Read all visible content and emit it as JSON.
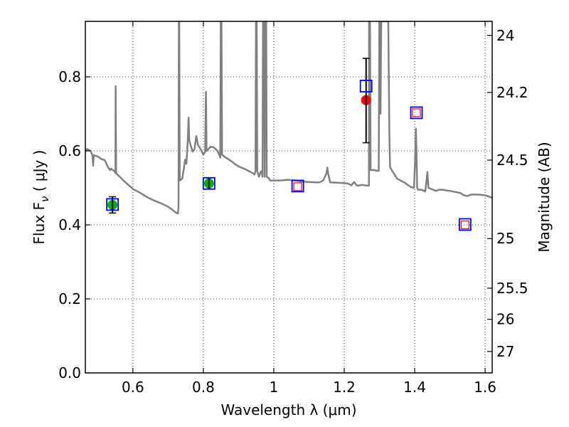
{
  "chart_data": {
    "type": "scatter",
    "xlabel": "Wavelength  λ (μm)",
    "ylabel": "Flux  F",
    "ylabel_sub": "ν",
    "ylabel_unit": "  ( μJy )",
    "y2label": "Magnitude (AB)",
    "xlim": [
      0.465,
      1.62
    ],
    "ylim": [
      0.0,
      0.95
    ],
    "grid": true,
    "xticks": [
      0.6,
      0.8,
      1.0,
      1.2,
      1.4,
      1.6
    ],
    "xtick_labels": [
      "0.6",
      "0.8",
      "1",
      "1.2",
      "1.4",
      "1.6"
    ],
    "yticks": [
      0.0,
      0.2,
      0.4,
      0.6,
      0.8
    ],
    "ytick_labels": [
      "0.0",
      "0.2",
      "0.4",
      "0.6",
      "0.8"
    ],
    "mag_ticks": [
      {
        "label": "24",
        "flux": 0.912
      },
      {
        "label": "24.2",
        "flux": 0.758
      },
      {
        "label": "24.5",
        "flux": 0.575
      },
      {
        "label": "25",
        "flux": 0.363
      },
      {
        "label": "25.5",
        "flux": 0.229
      },
      {
        "label": "26",
        "flux": 0.145
      },
      {
        "label": "27",
        "flux": 0.058
      }
    ],
    "sed_model": {
      "color": "#808080",
      "points": [
        [
          0.465,
          0.6
        ],
        [
          0.47,
          0.605
        ],
        [
          0.48,
          0.6
        ],
        [
          0.485,
          0.588
        ],
        [
          0.487,
          0.56
        ],
        [
          0.489,
          0.588
        ],
        [
          0.5,
          0.585
        ],
        [
          0.51,
          0.578
        ],
        [
          0.52,
          0.575
        ],
        [
          0.525,
          0.565
        ],
        [
          0.53,
          0.555
        ],
        [
          0.535,
          0.548
        ],
        [
          0.538,
          0.552
        ],
        [
          0.54,
          0.55
        ],
        [
          0.543,
          0.548
        ],
        [
          0.545,
          0.547
        ],
        [
          0.548,
          0.545
        ],
        [
          0.5505,
          0.54
        ],
        [
          0.551,
          0.775
        ],
        [
          0.5525,
          0.54
        ],
        [
          0.556,
          0.536
        ],
        [
          0.565,
          0.528
        ],
        [
          0.575,
          0.518
        ],
        [
          0.585,
          0.51
        ],
        [
          0.6,
          0.497
        ],
        [
          0.62,
          0.487
        ],
        [
          0.64,
          0.475
        ],
        [
          0.66,
          0.466
        ],
        [
          0.68,
          0.458
        ],
        [
          0.7,
          0.449
        ],
        [
          0.712,
          0.441
        ],
        [
          0.722,
          0.433
        ],
        [
          0.728,
          0.431
        ],
        [
          0.7295,
          0.45
        ],
        [
          0.7305,
          0.95
        ],
        [
          0.7315,
          0.95
        ],
        [
          0.733,
          0.52
        ],
        [
          0.74,
          0.525
        ],
        [
          0.745,
          0.555
        ],
        [
          0.748,
          0.576
        ],
        [
          0.752,
          0.565
        ],
        [
          0.756,
          0.632
        ],
        [
          0.758,
          0.69
        ],
        [
          0.76,
          0.628
        ],
        [
          0.765,
          0.612
        ],
        [
          0.77,
          0.598
        ],
        [
          0.775,
          0.605
        ],
        [
          0.78,
          0.64
        ],
        [
          0.785,
          0.615
        ],
        [
          0.79,
          0.608
        ],
        [
          0.795,
          0.6
        ],
        [
          0.8,
          0.59
        ],
        [
          0.805,
          0.598
        ],
        [
          0.8075,
          0.76
        ],
        [
          0.809,
          0.6
        ],
        [
          0.815,
          0.605
        ],
        [
          0.82,
          0.611
        ],
        [
          0.828,
          0.61
        ],
        [
          0.835,
          0.605
        ],
        [
          0.84,
          0.6
        ],
        [
          0.845,
          0.59
        ],
        [
          0.848,
          0.582
        ],
        [
          0.8495,
          0.95
        ],
        [
          0.8515,
          0.95
        ],
        [
          0.853,
          0.59
        ],
        [
          0.86,
          0.584
        ],
        [
          0.87,
          0.578
        ],
        [
          0.88,
          0.572
        ],
        [
          0.89,
          0.564
        ],
        [
          0.9,
          0.558
        ],
        [
          0.91,
          0.554
        ],
        [
          0.92,
          0.55
        ],
        [
          0.93,
          0.545
        ],
        [
          0.94,
          0.54
        ],
        [
          0.945,
          0.536
        ],
        [
          0.948,
          0.545
        ],
        [
          0.9495,
          0.95
        ],
        [
          0.9515,
          0.95
        ],
        [
          0.953,
          0.545
        ],
        [
          0.958,
          0.53
        ],
        [
          0.962,
          0.542
        ],
        [
          0.965,
          0.545
        ],
        [
          0.968,
          0.53
        ],
        [
          0.9695,
          0.95
        ],
        [
          0.9725,
          0.95
        ],
        [
          0.974,
          0.53
        ],
        [
          0.9755,
          0.95
        ],
        [
          0.9785,
          0.95
        ],
        [
          0.98,
          0.53
        ],
        [
          0.985,
          0.527
        ],
        [
          0.99,
          0.52
        ],
        [
          1.0,
          0.52
        ],
        [
          1.02,
          0.52
        ],
        [
          1.04,
          0.522
        ],
        [
          1.06,
          0.52
        ],
        [
          1.08,
          0.517
        ],
        [
          1.1,
          0.516
        ],
        [
          1.12,
          0.515
        ],
        [
          1.13,
          0.515
        ],
        [
          1.14,
          0.52
        ],
        [
          1.15,
          0.54
        ],
        [
          1.152,
          0.555
        ],
        [
          1.155,
          0.535
        ],
        [
          1.16,
          0.515
        ],
        [
          1.18,
          0.514
        ],
        [
          1.2,
          0.513
        ],
        [
          1.21,
          0.512
        ],
        [
          1.22,
          0.507
        ],
        [
          1.228,
          0.516
        ],
        [
          1.235,
          0.507
        ],
        [
          1.24,
          0.506
        ],
        [
          1.25,
          0.508
        ],
        [
          1.265,
          0.506
        ],
        [
          1.27,
          0.506
        ],
        [
          1.2705,
          0.95
        ],
        [
          1.273,
          0.95
        ],
        [
          1.275,
          0.548
        ],
        [
          1.285,
          0.548
        ],
        [
          1.295,
          0.546
        ],
        [
          1.298,
          0.546
        ],
        [
          1.2995,
          0.95
        ],
        [
          1.302,
          0.95
        ],
        [
          1.303,
          0.7
        ],
        [
          1.305,
          0.95
        ],
        [
          1.32,
          0.95
        ],
        [
          1.325,
          0.95
        ],
        [
          1.328,
          0.65
        ],
        [
          1.33,
          0.556
        ],
        [
          1.34,
          0.54
        ],
        [
          1.35,
          0.525
        ],
        [
          1.36,
          0.52
        ],
        [
          1.37,
          0.515
        ],
        [
          1.38,
          0.508
        ],
        [
          1.39,
          0.502
        ],
        [
          1.398,
          0.5
        ],
        [
          1.401,
          0.57
        ],
        [
          1.4035,
          0.66
        ],
        [
          1.405,
          0.6
        ],
        [
          1.407,
          0.5
        ],
        [
          1.41,
          0.495
        ],
        [
          1.42,
          0.495
        ],
        [
          1.43,
          0.49
        ],
        [
          1.433,
          0.515
        ],
        [
          1.436,
          0.543
        ],
        [
          1.439,
          0.5
        ],
        [
          1.45,
          0.496
        ],
        [
          1.46,
          0.492
        ],
        [
          1.47,
          0.495
        ],
        [
          1.48,
          0.495
        ],
        [
          1.49,
          0.493
        ],
        [
          1.5,
          0.492
        ],
        [
          1.51,
          0.49
        ],
        [
          1.52,
          0.488
        ],
        [
          1.53,
          0.486
        ],
        [
          1.54,
          0.48
        ],
        [
          1.55,
          0.478
        ],
        [
          1.56,
          0.482
        ],
        [
          1.58,
          0.482
        ],
        [
          1.6,
          0.48
        ],
        [
          1.61,
          0.477
        ],
        [
          1.62,
          0.473
        ]
      ]
    },
    "series": [
      {
        "marker": "circle",
        "color": "#00b000",
        "points": [
          {
            "x": 0.542,
            "y": 0.454,
            "yerr": 0.022
          },
          {
            "x": 0.816,
            "y": 0.512,
            "yerr": 0.015
          }
        ]
      },
      {
        "marker": "circle",
        "color": "#ff0000",
        "points": [
          {
            "x": 1.262,
            "y": 0.737,
            "ylo": 0.622,
            "yhi": 0.85
          }
        ]
      },
      {
        "marker": "square",
        "color": "#0000ff",
        "points": [
          {
            "x": 0.542,
            "y": 0.455
          },
          {
            "x": 0.816,
            "y": 0.512
          },
          {
            "x": 1.068,
            "y": 0.505
          },
          {
            "x": 1.262,
            "y": 0.775
          },
          {
            "x": 1.405,
            "y": 0.703
          },
          {
            "x": 1.543,
            "y": 0.401
          }
        ]
      },
      {
        "marker": "square",
        "color": "#ff0000",
        "points": [
          {
            "x": 1.068,
            "y": 0.503
          },
          {
            "x": 1.405,
            "y": 0.703
          },
          {
            "x": 1.543,
            "y": 0.4
          }
        ]
      }
    ]
  }
}
